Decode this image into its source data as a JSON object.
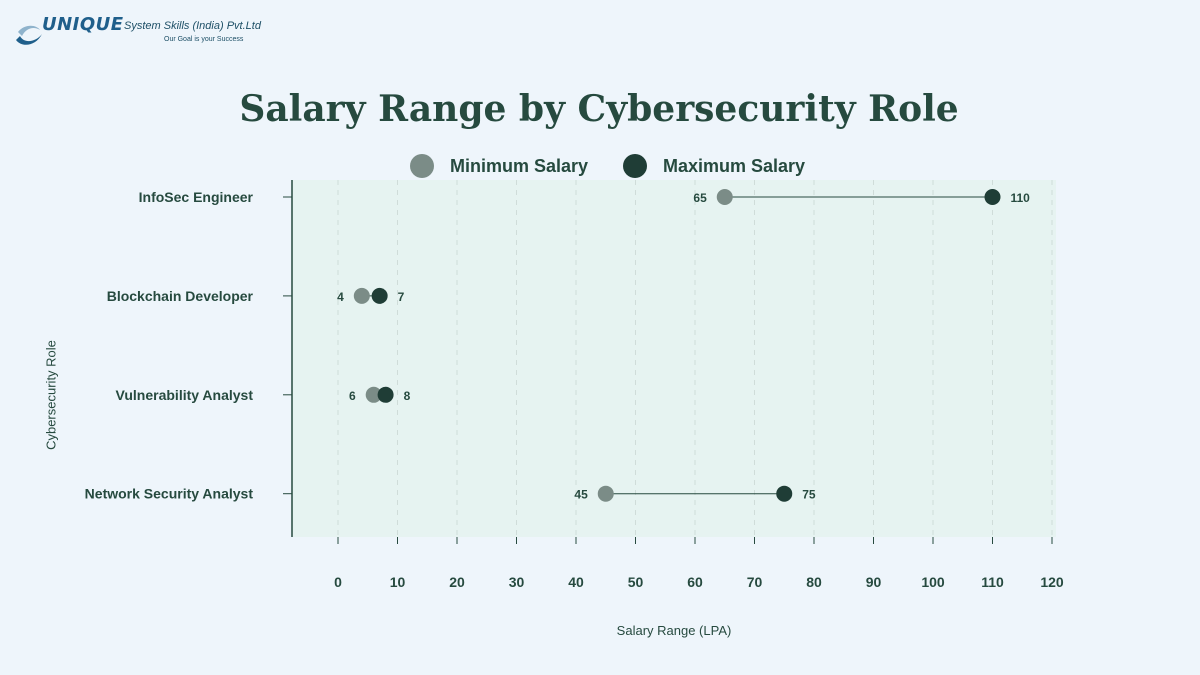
{
  "logo": {
    "brand": "UNIQUE",
    "company": "System Skills (India) Pvt.Ltd",
    "tagline": "Our Goal is your Success"
  },
  "colors": {
    "background": "#eef5fb",
    "plot_background": "#e6f3f1",
    "min_dot": "#7b8c87",
    "max_dot": "#1f3d36",
    "text": "#264a3f"
  },
  "chart_data": {
    "type": "dumbbell",
    "title": "Salary Range by Cybersecurity Role",
    "xlabel": "Salary Range (LPA)",
    "ylabel": "Cybersecurity Role",
    "xlim": [
      -8,
      121
    ],
    "xticks": [
      0,
      10,
      20,
      30,
      40,
      50,
      60,
      70,
      80,
      90,
      100,
      110,
      120
    ],
    "grid": "vertical dashed",
    "legend_position": "top-center",
    "series": [
      {
        "name": "Minimum Salary",
        "color": "#7b8c87"
      },
      {
        "name": "Maximum Salary",
        "color": "#1f3d36"
      }
    ],
    "categories": [
      "InfoSec Engineer",
      "Blockchain Developer",
      "Vulnerability Analyst",
      "Network Security Analyst"
    ],
    "rows": [
      {
        "role": "InfoSec Engineer",
        "min": 65,
        "max": 110
      },
      {
        "role": "Blockchain Developer",
        "min": 4,
        "max": 7
      },
      {
        "role": "Vulnerability Analyst",
        "min": 6,
        "max": 8
      },
      {
        "role": "Network Security Analyst",
        "min": 45,
        "max": 75
      }
    ]
  }
}
